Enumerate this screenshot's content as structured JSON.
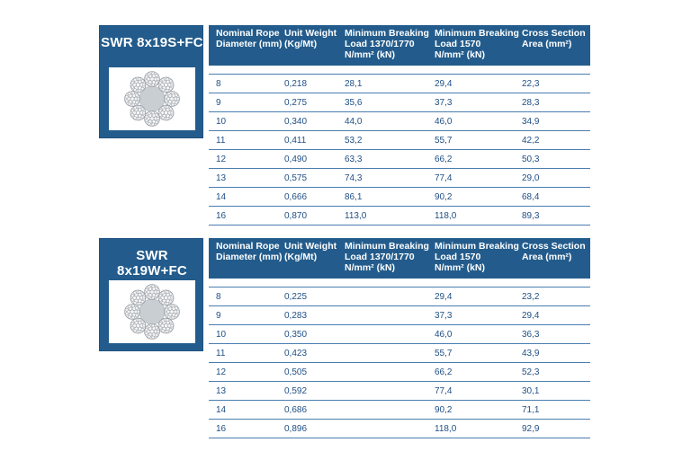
{
  "sections": [
    {
      "title": "SWR 8x19S+FC",
      "image": "rope-cross-section-8x19S",
      "headers": [
        "Nominal Rope\nDiameter (mm)",
        "Unit Weight\n(Kg/Mt)",
        "Minimum Breaking\nLoad 1370/1770\nN/mm² (kN)",
        "Minimum Breaking\nLoad 1570\nN/mm² (kN)",
        "Cross Section\nArea (mm²)"
      ],
      "rows": [
        [
          "8",
          "0,218",
          "28,1",
          "29,4",
          "22,3"
        ],
        [
          "9",
          "0,275",
          "35,6",
          "37,3",
          "28,3"
        ],
        [
          "10",
          "0,340",
          "44,0",
          "46,0",
          "34,9"
        ],
        [
          "11",
          "0,411",
          "53,2",
          "55,7",
          "42,2"
        ],
        [
          "12",
          "0,490",
          "63,3",
          "66,2",
          "50,3"
        ],
        [
          "13",
          "0,575",
          "74,3",
          "77,4",
          "29,0"
        ],
        [
          "14",
          "0,666",
          "86,1",
          "90,2",
          "68,4"
        ],
        [
          "16",
          "0,870",
          "113,0",
          "118,0",
          "89,3"
        ]
      ]
    },
    {
      "title": "SWR 8x19W+FC",
      "image": "rope-cross-section-8x19W",
      "headers": [
        "Nominal Rope\nDiameter (mm)",
        "Unit Weight\n(Kg/Mt)",
        "Minimum Breaking\nLoad 1370/1770\nN/mm² (kN)",
        "Minimum Breaking\nLoad 1570\nN/mm² (kN)",
        "Cross Section\nArea (mm²)"
      ],
      "rows": [
        [
          "8",
          "0,225",
          "",
          "29,4",
          "23,2"
        ],
        [
          "9",
          "0,283",
          "",
          "37,3",
          "29,4"
        ],
        [
          "10",
          "0,350",
          "",
          "46,0",
          "36,3"
        ],
        [
          "11",
          "0,423",
          "",
          "55,7",
          "43,9"
        ],
        [
          "12",
          "0,505",
          "",
          "66,2",
          "52,3"
        ],
        [
          "13",
          "0,592",
          "",
          "77,4",
          "30,1"
        ],
        [
          "14",
          "0,686",
          "",
          "90,2",
          "71,1"
        ],
        [
          "16",
          "0,896",
          "",
          "118,0",
          "92,9"
        ]
      ]
    }
  ],
  "colors": {
    "header_bg": "#235c8c",
    "cell_text": "#1f4f86",
    "rule": "#4a7eb0"
  }
}
